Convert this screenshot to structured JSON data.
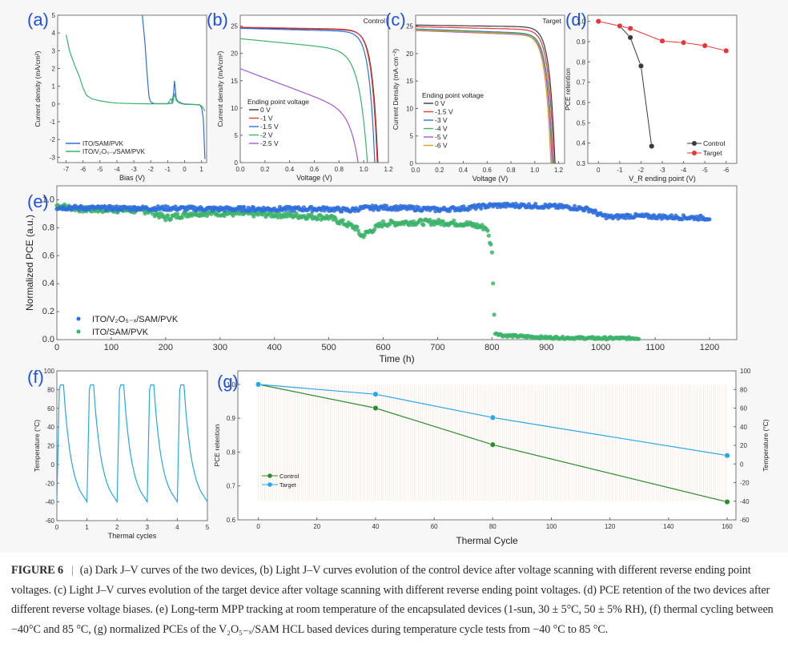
{
  "figure_label": "FIGURE 6",
  "caption": {
    "separator": "|",
    "text": "(a) Dark J–V curves of the two devices, (b) Light J–V curves evolution of the control device after voltage scanning with different reverse ending point voltages. (c) Light J–V curves evolution of the target device after voltage scanning with different reverse ending point voltages. (d) PCE retention of the two devices after different reverse voltage biases. (e) Long-term MPP tracking at room temperature of the encapsulated devices (1-sun, 30 ± 5°C, 50 ± 5% RH), (f) thermal cycling between −40°C and 85 °C, (g) normalized PCEs of the V₂O₅₋ₓ/SAM HCL based devices during temperature cycle tests from −40 °C to 85 °C."
  },
  "colors": {
    "panel_label": "#2050e0",
    "blue": "#2f6fdc",
    "green": "#3cb36a",
    "black": "#3a3a3a",
    "red": "#e8363a",
    "purple": "#a25ad8",
    "yellow": "#d9a21a",
    "lightblue": "#2aa6e6",
    "darkgreen": "#2e8b2e",
    "hatch": "#f0c9b0"
  },
  "chart_data": [
    {
      "id": "a",
      "panel_label": "(a)",
      "type": "line",
      "title": "",
      "xlabel": "Bias (V)",
      "ylabel": "Current density (mA/cm²)",
      "xlim": [
        -7.5,
        1.3
      ],
      "ylim": [
        -3.3,
        5
      ],
      "xticks": [
        -7,
        -6,
        -5,
        -4,
        -3,
        -2,
        -1,
        0,
        1
      ],
      "yticks": [
        -3,
        -2,
        -1,
        0,
        1,
        2,
        3,
        4,
        5
      ],
      "legend": "bottom-left",
      "series": [
        {
          "name": "ITO/SAM/PVK",
          "color": "blue",
          "x": [
            -2.5,
            -2.35,
            -2.2,
            -2.1,
            -2.0,
            -1.8,
            -1.5,
            -1.0,
            -0.75,
            -0.65,
            -0.6,
            -0.55,
            -0.5,
            -0.4,
            -0.2,
            0.0,
            0.5,
            0.9,
            1.0,
            1.1,
            1.15,
            1.2
          ],
          "y": [
            5.0,
            3.5,
            1.5,
            0.4,
            0.1,
            0.03,
            0.02,
            0.02,
            0.05,
            0.6,
            1.3,
            0.9,
            0.3,
            0.15,
            0.05,
            0.0,
            -0.02,
            -0.05,
            -0.2,
            -0.8,
            -1.8,
            -3.1
          ]
        },
        {
          "name": "ITO/V₂O₅₋ₓ/SAM/PVK",
          "color": "green",
          "x": [
            -7.0,
            -6.8,
            -6.5,
            -6.2,
            -6.0,
            -5.8,
            -5.5,
            -5.0,
            -4.5,
            -4.0,
            -3.0,
            -2.0,
            -1.0,
            -0.8,
            -0.7,
            -0.6,
            -0.5,
            -0.3,
            0.0,
            0.5,
            0.9,
            1.05,
            1.2
          ],
          "y": [
            3.9,
            3.0,
            2.2,
            1.5,
            0.9,
            0.5,
            0.3,
            0.18,
            0.1,
            0.05,
            0.02,
            0.01,
            0.01,
            0.3,
            0.05,
            0.6,
            0.2,
            0.05,
            -0.02,
            -0.03,
            -0.05,
            -0.15,
            -0.4
          ]
        }
      ],
      "legend_entries": [
        "ITO/SAM/PVK",
        "ITO/V₂O₅₋ₓ/SAM/PVK"
      ]
    },
    {
      "id": "b",
      "panel_label": "(b)",
      "type": "line",
      "annotation": "Control",
      "xlabel": "Voltage (V)",
      "ylabel": "Current density (mA/cm²)",
      "xlim": [
        0,
        1.2
      ],
      "ylim": [
        0,
        27
      ],
      "xticks": [
        0.0,
        0.2,
        0.4,
        0.6,
        0.8,
        1.0,
        1.2
      ],
      "yticks": [
        0,
        5,
        10,
        15,
        20,
        25
      ],
      "legend_title": "Ending point voltage",
      "legend": "bottom-left",
      "series": [
        {
          "name": "0 V",
          "color": "black",
          "jsc": 24.7,
          "voc": 1.115,
          "jmp": 23.5,
          "vmp": 0.92,
          "slope": 0.4
        },
        {
          "name": "-1 V",
          "color": "red",
          "jsc": 24.8,
          "voc": 1.11,
          "jmp": 23.4,
          "vmp": 0.9,
          "slope": 0.4
        },
        {
          "name": "-1.5 V",
          "color": "blue",
          "jsc": 24.6,
          "voc": 1.09,
          "jmp": 22.8,
          "vmp": 0.87,
          "slope": 0.6
        },
        {
          "name": "-2 V",
          "color": "green",
          "jsc": 22.7,
          "voc": 1.03,
          "jmp": 20.0,
          "vmp": 0.83,
          "slope": 2.2
        },
        {
          "name": "-2.5 V",
          "color": "purple",
          "jsc": 17.2,
          "voc": 0.955,
          "jmp": 9.5,
          "vmp": 0.82,
          "slope": 8.5
        }
      ]
    },
    {
      "id": "c",
      "panel_label": "(c)",
      "type": "line",
      "annotation": "Target",
      "xlabel": "Voltage (V)",
      "ylabel": "Current Density (mA·cm⁻²)",
      "xlim": [
        0,
        1.25
      ],
      "ylim": [
        0,
        27
      ],
      "xticks": [
        0.0,
        0.2,
        0.4,
        0.6,
        0.8,
        1.0,
        1.2
      ],
      "yticks": [
        0,
        5,
        10,
        15,
        20,
        25
      ],
      "legend_title": "Ending point voltage",
      "legend": "bottom-left",
      "series": [
        {
          "name": "0 V",
          "color": "black",
          "jsc": 25.2,
          "voc": 1.17,
          "jmp": 23.8,
          "vmp": 1.0,
          "slope": 0.3
        },
        {
          "name": "-1.5 V",
          "color": "red",
          "jsc": 24.9,
          "voc": 1.16,
          "jmp": 23.2,
          "vmp": 0.98,
          "slope": 0.5
        },
        {
          "name": "-3 V",
          "color": "blue",
          "jsc": 24.5,
          "voc": 1.15,
          "jmp": 22.8,
          "vmp": 0.95,
          "slope": 0.8
        },
        {
          "name": "-4 V",
          "color": "green",
          "jsc": 24.4,
          "voc": 1.15,
          "jmp": 22.7,
          "vmp": 0.95,
          "slope": 0.8
        },
        {
          "name": "-5 V",
          "color": "purple",
          "jsc": 24.2,
          "voc": 1.145,
          "jmp": 22.5,
          "vmp": 0.94,
          "slope": 0.8
        },
        {
          "name": "-6 V",
          "color": "yellow",
          "jsc": 24.3,
          "voc": 1.135,
          "jmp": 22.0,
          "vmp": 0.92,
          "slope": 0.8
        }
      ]
    },
    {
      "id": "d",
      "panel_label": "(d)",
      "type": "line",
      "xlabel": "V_R ending point (V)",
      "ylabel": "PCE retention",
      "xlim": [
        0.5,
        -6.5
      ],
      "ylim": [
        0.3,
        1.03
      ],
      "xticks": [
        0,
        -1,
        -2,
        -3,
        -4,
        -5,
        -6
      ],
      "yticks": [
        0.3,
        0.4,
        0.5,
        0.6,
        0.7,
        0.8,
        0.9,
        1.0
      ],
      "legend": "bottom-right",
      "series": [
        {
          "name": "Control",
          "color": "black",
          "x": [
            -1,
            -1.5,
            -2,
            -2.5
          ],
          "y": [
            0.977,
            0.92,
            0.78,
            0.385
          ]
        },
        {
          "name": "Target",
          "color": "red",
          "x": [
            0,
            -1,
            -1.5,
            -3,
            -4,
            -5,
            -6
          ],
          "y": [
            1.0,
            0.977,
            0.965,
            0.903,
            0.895,
            0.88,
            0.855
          ]
        }
      ]
    },
    {
      "id": "e",
      "panel_label": "(e)",
      "type": "scatter",
      "xlabel": "Time (h)",
      "ylabel": "Normalized PCE (a.u.)",
      "xlim": [
        0,
        1250
      ],
      "ylim": [
        0,
        1.1
      ],
      "xticks": [
        0,
        100,
        200,
        300,
        400,
        500,
        600,
        700,
        800,
        900,
        1000,
        1100,
        1200
      ],
      "yticks": [
        0.0,
        0.2,
        0.4,
        0.6,
        0.8,
        1.0
      ],
      "legend": "bottom-left",
      "series": [
        {
          "name": "ITO/V₂O₅₋ₓ/SAM/PVK",
          "color": "blue",
          "trend_x": [
            0,
            100,
            200,
            300,
            400,
            500,
            540,
            560,
            600,
            650,
            700,
            750,
            800,
            850,
            900,
            950,
            980,
            1000,
            1020,
            1050,
            1100,
            1150,
            1200
          ],
          "trend_y": [
            0.945,
            0.94,
            0.94,
            0.935,
            0.935,
            0.935,
            0.925,
            0.94,
            0.945,
            0.94,
            0.93,
            0.94,
            0.96,
            0.96,
            0.955,
            0.945,
            0.93,
            0.89,
            0.875,
            0.885,
            0.88,
            0.875,
            0.87
          ],
          "spread": 0.015,
          "interval_h": 2,
          "end_h": 1200
        },
        {
          "name": "ITO/SAM/PVK",
          "color": "green",
          "trend_x": [
            0,
            50,
            100,
            170,
            200,
            250,
            300,
            400,
            500,
            550,
            560,
            600,
            650,
            700,
            750,
            790,
            800,
            805,
            820,
            900,
            1000,
            1070
          ],
          "trend_y": [
            0.96,
            0.93,
            0.93,
            0.92,
            0.87,
            0.905,
            0.905,
            0.895,
            0.875,
            0.8,
            0.74,
            0.83,
            0.84,
            0.84,
            0.83,
            0.8,
            0.64,
            0.05,
            0.03,
            0.015,
            0.01,
            0.01
          ],
          "spread": 0.02,
          "interval_h": 2,
          "end_h": 1070
        }
      ]
    },
    {
      "id": "f",
      "panel_label": "(f)",
      "type": "line",
      "xlabel": "Thermal cycles",
      "ylabel": "Temperature (°C)",
      "xlim": [
        0,
        5
      ],
      "ylim": [
        -60,
        100
      ],
      "xticks": [
        0,
        1,
        2,
        3,
        4,
        5
      ],
      "yticks": [
        -60,
        -40,
        -20,
        0,
        20,
        40,
        60,
        80,
        100
      ],
      "series": [
        {
          "name": "Temperature",
          "color": "lightblue",
          "cycle_min": -40,
          "cycle_max": 85,
          "cycles": 5
        }
      ]
    },
    {
      "id": "g",
      "panel_label": "(g)",
      "type": "line",
      "xlabel": "Thermal Cycle",
      "ylabel": "PCE retention",
      "ylabel_right": "Temperature (°C)",
      "xlim": [
        -7,
        163
      ],
      "ylim": [
        0.6,
        1.04
      ],
      "ylim_right": [
        -60,
        100
      ],
      "xticks": [
        0,
        20,
        40,
        60,
        80,
        100,
        120,
        140,
        160
      ],
      "yticks": [
        0.6,
        0.7,
        0.8,
        0.9,
        1.0
      ],
      "yticks_right": [
        -60,
        -40,
        -20,
        0,
        20,
        40,
        60,
        80,
        100
      ],
      "legend": "center-left",
      "series": [
        {
          "name": "Control",
          "color": "darkgreen",
          "x": [
            0,
            40,
            80,
            160
          ],
          "y": [
            1.0,
            0.93,
            0.822,
            0.653
          ]
        },
        {
          "name": "Target",
          "color": "lightblue",
          "x": [
            0,
            40,
            80,
            160
          ],
          "y": [
            1.0,
            0.971,
            0.902,
            0.79
          ]
        }
      ],
      "background_temperature": {
        "min": -40,
        "max": 85,
        "x_start": 0,
        "x_end": 160
      }
    }
  ]
}
